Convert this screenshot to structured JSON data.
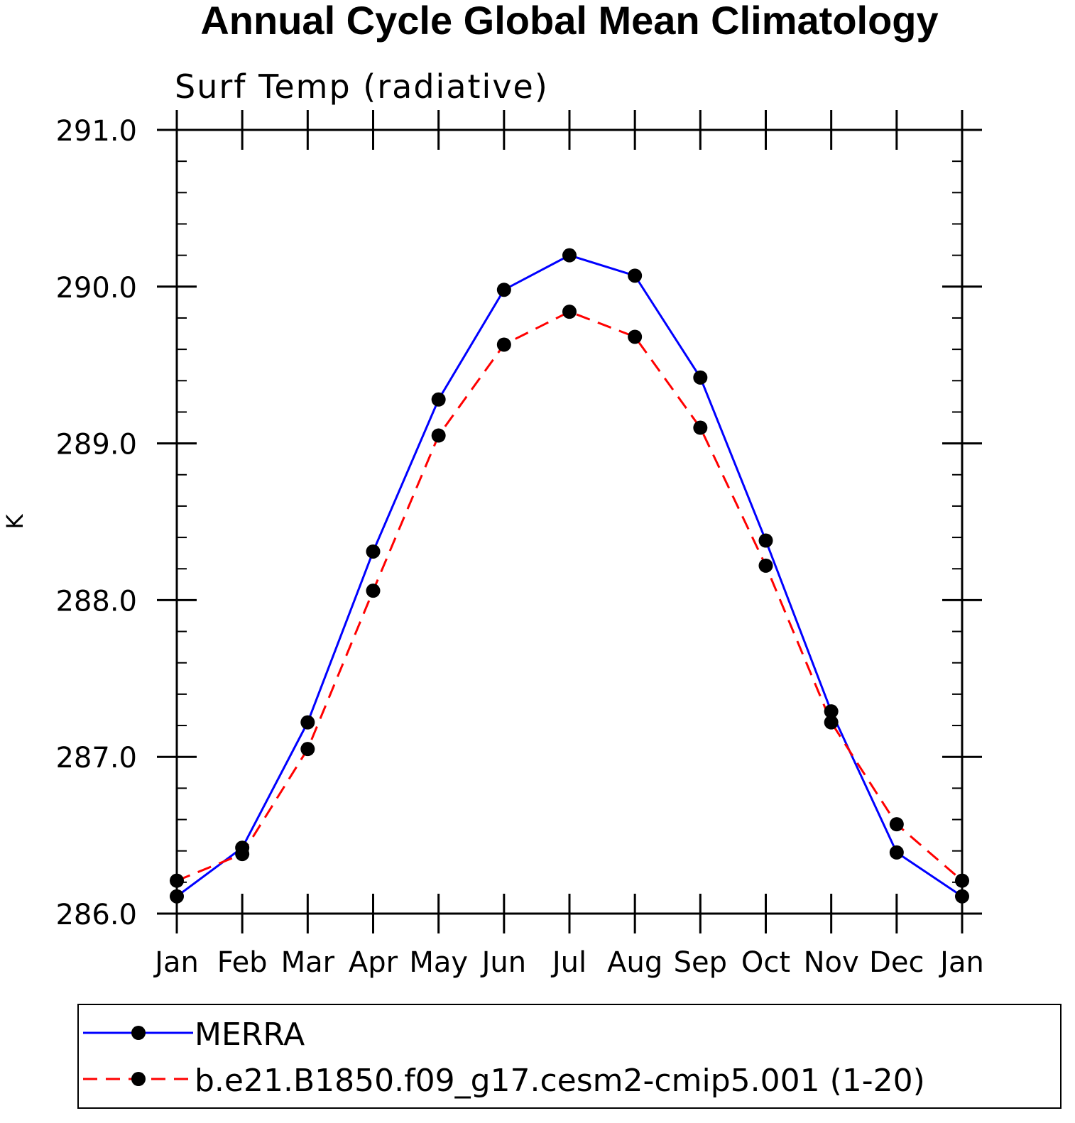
{
  "chart_data": {
    "type": "line",
    "title": "Annual Cycle Global Mean Climatology",
    "subtitle": "Surf Temp (radiative)",
    "xlabel": "",
    "ylabel": "K",
    "categories": [
      "Jan",
      "Feb",
      "Mar",
      "Apr",
      "May",
      "Jun",
      "Jul",
      "Aug",
      "Sep",
      "Oct",
      "Nov",
      "Dec",
      "Jan"
    ],
    "ylim": [
      286.0,
      291.0
    ],
    "yticks": [
      "286.0",
      "287.0",
      "288.0",
      "289.0",
      "290.0",
      "291.0"
    ],
    "grid": false,
    "legend_position": "bottom",
    "series": [
      {
        "name": "MERRA",
        "color": "#0000ff",
        "line_style": "solid",
        "marker": "filled-circle",
        "values": [
          286.11,
          286.42,
          287.22,
          288.31,
          289.28,
          289.98,
          290.2,
          290.07,
          289.42,
          288.38,
          287.29,
          286.39,
          286.11
        ]
      },
      {
        "name": "b.e21.B1850.f09_g17.cesm2-cmip5.001 (1-20)",
        "color": "#ff0000",
        "line_style": "dashed",
        "marker": "filled-circle",
        "values": [
          286.21,
          286.38,
          287.05,
          288.06,
          289.05,
          289.63,
          289.84,
          289.68,
          289.1,
          288.22,
          287.22,
          286.57,
          286.21
        ]
      }
    ]
  }
}
